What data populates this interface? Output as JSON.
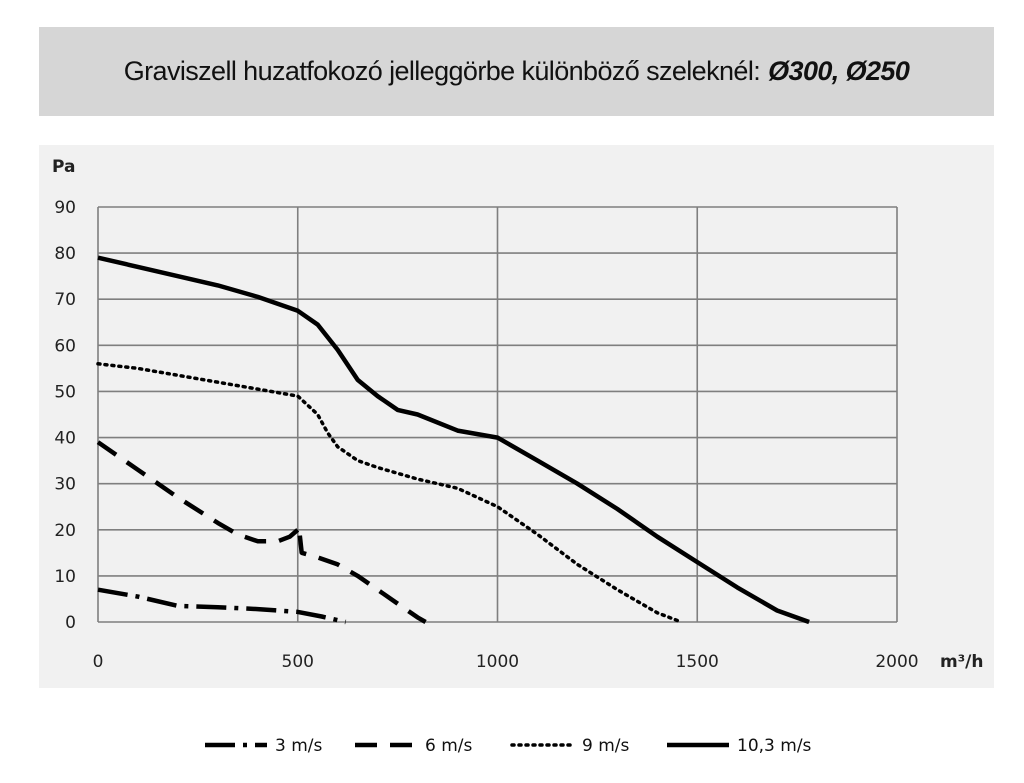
{
  "title": {
    "text": "Graviszell huzatfokozó jelleggörbe különböző szeleknél:",
    "emphasis": "Ø300, Ø250"
  },
  "colors": {
    "line": "#000000",
    "grid": "#7f7f7f",
    "plot_bg": "#f1f1f1",
    "title_bg": "#d6d6d6"
  },
  "chart_data": {
    "type": "line",
    "title": "Graviszell huzatfokozó jelleggörbe különböző szeleknél: Ø300, Ø250",
    "xlabel": "m³/h",
    "ylabel": "Pa",
    "xlim": [
      0,
      2000
    ],
    "ylim": [
      0,
      90
    ],
    "xticks": [
      0,
      500,
      1000,
      1500,
      2000
    ],
    "yticks": [
      0,
      10,
      20,
      30,
      40,
      50,
      60,
      70,
      80,
      90
    ],
    "grid": true,
    "legend_position": "bottom",
    "series": [
      {
        "name": "3 m/s",
        "style": "dash-dot",
        "x": [
          0,
          100,
          200,
          300,
          400,
          500,
          560,
          620
        ],
        "y": [
          7,
          5.5,
          3.5,
          3.2,
          2.8,
          2.2,
          1.2,
          0
        ]
      },
      {
        "name": "6 m/s",
        "style": "dashed",
        "x": [
          0,
          100,
          200,
          300,
          350,
          400,
          450,
          480,
          500,
          510,
          505,
          510,
          550,
          600,
          650,
          700,
          750,
          800,
          820
        ],
        "y": [
          39,
          33,
          27,
          21.5,
          19,
          17.5,
          17.5,
          18.5,
          20,
          20.5,
          19,
          15,
          14,
          12.5,
          10,
          7,
          4,
          1,
          0
        ]
      },
      {
        "name": "9 m/s",
        "style": "dotted",
        "x": [
          0,
          100,
          200,
          300,
          400,
          500,
          550,
          575,
          600,
          650,
          700,
          800,
          900,
          1000,
          1100,
          1200,
          1300,
          1400,
          1460
        ],
        "y": [
          56,
          55,
          53.5,
          52,
          50.5,
          49,
          45,
          41,
          38,
          35,
          33.5,
          31,
          29,
          25,
          19,
          12.5,
          7,
          2,
          0
        ]
      },
      {
        "name": "10,3 m/s",
        "style": "solid",
        "x": [
          0,
          100,
          200,
          300,
          400,
          500,
          550,
          600,
          650,
          700,
          750,
          800,
          900,
          1000,
          1100,
          1200,
          1300,
          1400,
          1500,
          1600,
          1700,
          1780
        ],
        "y": [
          79,
          77,
          75,
          73,
          70.5,
          67.5,
          64.5,
          59,
          52.5,
          49,
          46,
          45,
          41.5,
          40,
          35,
          30,
          24.5,
          18.5,
          13,
          7.5,
          2.5,
          0
        ]
      }
    ]
  }
}
